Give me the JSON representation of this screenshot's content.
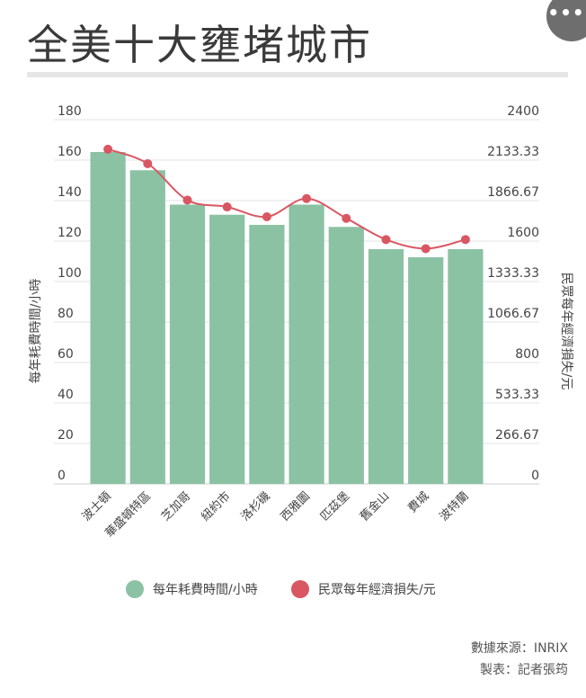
{
  "title": "全美十大壅堵城市",
  "more_label": "•••",
  "colors": {
    "bar": "#8bc2a4",
    "line": "#d95763",
    "grid": "#e3e3e3",
    "text": "#444444"
  },
  "chart_data": {
    "type": "bar",
    "categories": [
      "波士頓",
      "華盛頓特區",
      "芝加哥",
      "紐約市",
      "洛杉磯",
      "西雅圖",
      "匹茲堡",
      "舊金山",
      "費城",
      "波特蘭"
    ],
    "series": [
      {
        "name": "每年耗費時間/小時",
        "type": "bar",
        "axis": "left",
        "values": [
          164,
          155,
          138,
          133,
          128,
          138,
          127,
          116,
          112,
          116
        ]
      },
      {
        "name": "民眾每年經濟損失/元",
        "type": "line",
        "axis": "right",
        "values": [
          2205,
          2110,
          1870,
          1825,
          1760,
          1880,
          1750,
          1610,
          1550,
          1610
        ]
      }
    ],
    "ylabel": "每年耗費時間/小時",
    "ylabel_right": "民眾每年經濟損失/元",
    "ylim": [
      0,
      180
    ],
    "ylim_right": [
      0,
      2400
    ],
    "yticks": [
      "0",
      "20",
      "40",
      "60",
      "80",
      "100",
      "120",
      "140",
      "160",
      "180"
    ],
    "yticks_right": [
      "0",
      "266.67",
      "533.33",
      "800",
      "1066.67",
      "1333.33",
      "1600",
      "1866.67",
      "2133.33",
      "2400"
    ],
    "grid": true,
    "legend": "bottom"
  },
  "credits": {
    "source": "數據來源：INRIX",
    "maker": "製表：記者張筠"
  }
}
